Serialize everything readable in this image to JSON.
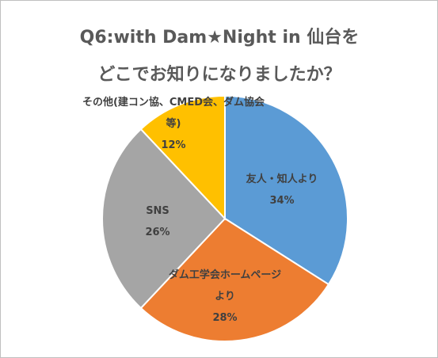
{
  "chart_data": {
    "type": "pie",
    "title": [
      "Q6:with Dam★Night in 仙台を",
      "どこでお知りになりましたか？"
    ],
    "categories": [
      "友人・知人より",
      "ダム工学会ホームページより",
      "SNS",
      "その他(建コン協、CMED会、ダム協会等)"
    ],
    "values": [
      34,
      28,
      26,
      12
    ],
    "value_labels": [
      "34%",
      "28%",
      "26%",
      "12%"
    ],
    "colors": [
      "#5b9bd5",
      "#ed7d31",
      "#a5a5a5",
      "#ffc000"
    ]
  }
}
